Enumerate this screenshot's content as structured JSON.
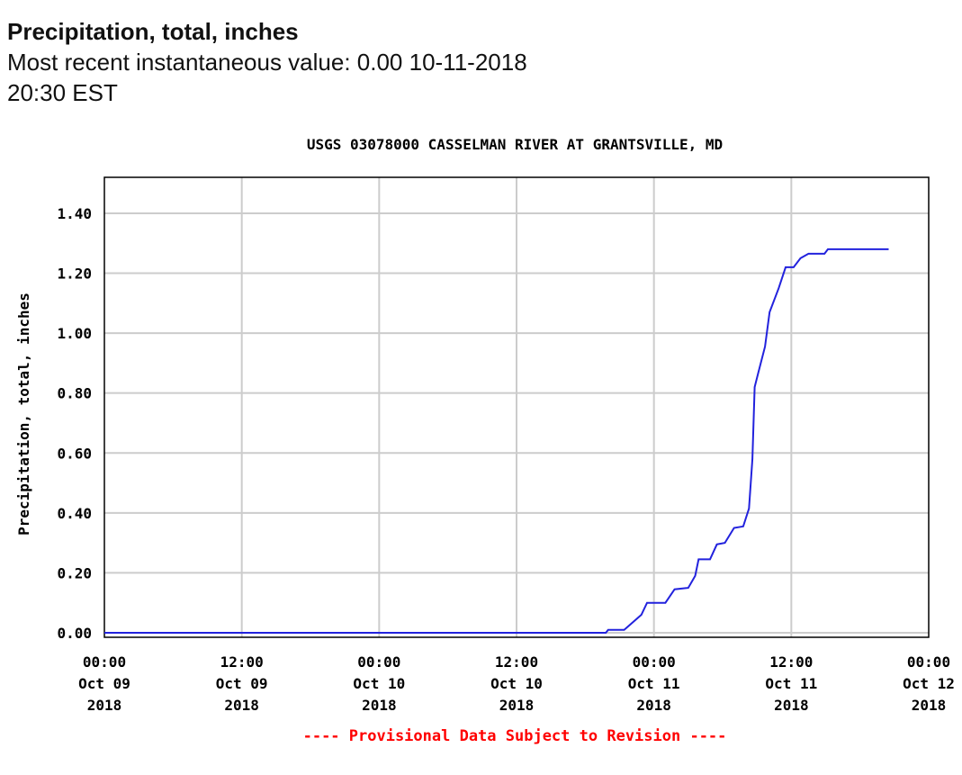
{
  "header": {
    "title": "Precipitation, total, inches",
    "subtitle": "Most recent instantaneous value: 0.00 10-11-2018   20:30 EST"
  },
  "chart_data": {
    "type": "line",
    "title": "USGS 03078000 CASSELMAN RIVER AT GRANTSVILLE, MD",
    "xlabel": "",
    "ylabel": "Precipitation, total, inches",
    "footnote": "---- Provisional Data Subject to Revision ----",
    "x_units": "hours since 00:00 Oct 09 2018",
    "xlim": [
      0,
      72
    ],
    "ylim": [
      -0.015,
      1.52
    ],
    "grid": true,
    "line_color": "#2222dd",
    "footnote_color": "#ff0000",
    "yticks": [
      {
        "value": 0.0,
        "label": "0.00"
      },
      {
        "value": 0.2,
        "label": "0.20"
      },
      {
        "value": 0.4,
        "label": "0.40"
      },
      {
        "value": 0.6,
        "label": "0.60"
      },
      {
        "value": 0.8,
        "label": "0.80"
      },
      {
        "value": 1.0,
        "label": "1.00"
      },
      {
        "value": 1.2,
        "label": "1.20"
      },
      {
        "value": 1.4,
        "label": "1.40"
      }
    ],
    "xticks": [
      {
        "value": 0,
        "lines": [
          "00:00",
          "Oct 09",
          "2018"
        ]
      },
      {
        "value": 12,
        "lines": [
          "12:00",
          "Oct 09",
          "2018"
        ]
      },
      {
        "value": 24,
        "lines": [
          "00:00",
          "Oct 10",
          "2018"
        ]
      },
      {
        "value": 36,
        "lines": [
          "12:00",
          "Oct 10",
          "2018"
        ]
      },
      {
        "value": 48,
        "lines": [
          "00:00",
          "Oct 11",
          "2018"
        ]
      },
      {
        "value": 60,
        "lines": [
          "12:00",
          "Oct 11",
          "2018"
        ]
      },
      {
        "value": 72,
        "lines": [
          "00:00",
          "Oct 12",
          "2018"
        ]
      }
    ],
    "series": [
      {
        "name": "Precipitation, total, inches",
        "x": [
          0,
          43.8,
          44.0,
          45.4,
          46.9,
          47.4,
          49.0,
          49.8,
          51.0,
          51.6,
          51.9,
          52.9,
          53.5,
          54.2,
          55.0,
          55.8,
          56.3,
          56.6,
          56.8,
          57.1,
          57.7,
          58.1,
          58.9,
          59.5,
          60.2,
          60.8,
          61.5,
          62.9,
          63.2,
          68.5
        ],
        "y": [
          0,
          0,
          0.01,
          0.01,
          0.06,
          0.1,
          0.1,
          0.145,
          0.15,
          0.19,
          0.245,
          0.245,
          0.295,
          0.3,
          0.35,
          0.355,
          0.415,
          0.58,
          0.82,
          0.865,
          0.955,
          1.07,
          1.15,
          1.22,
          1.22,
          1.25,
          1.265,
          1.265,
          1.28,
          1.28
        ]
      }
    ]
  }
}
